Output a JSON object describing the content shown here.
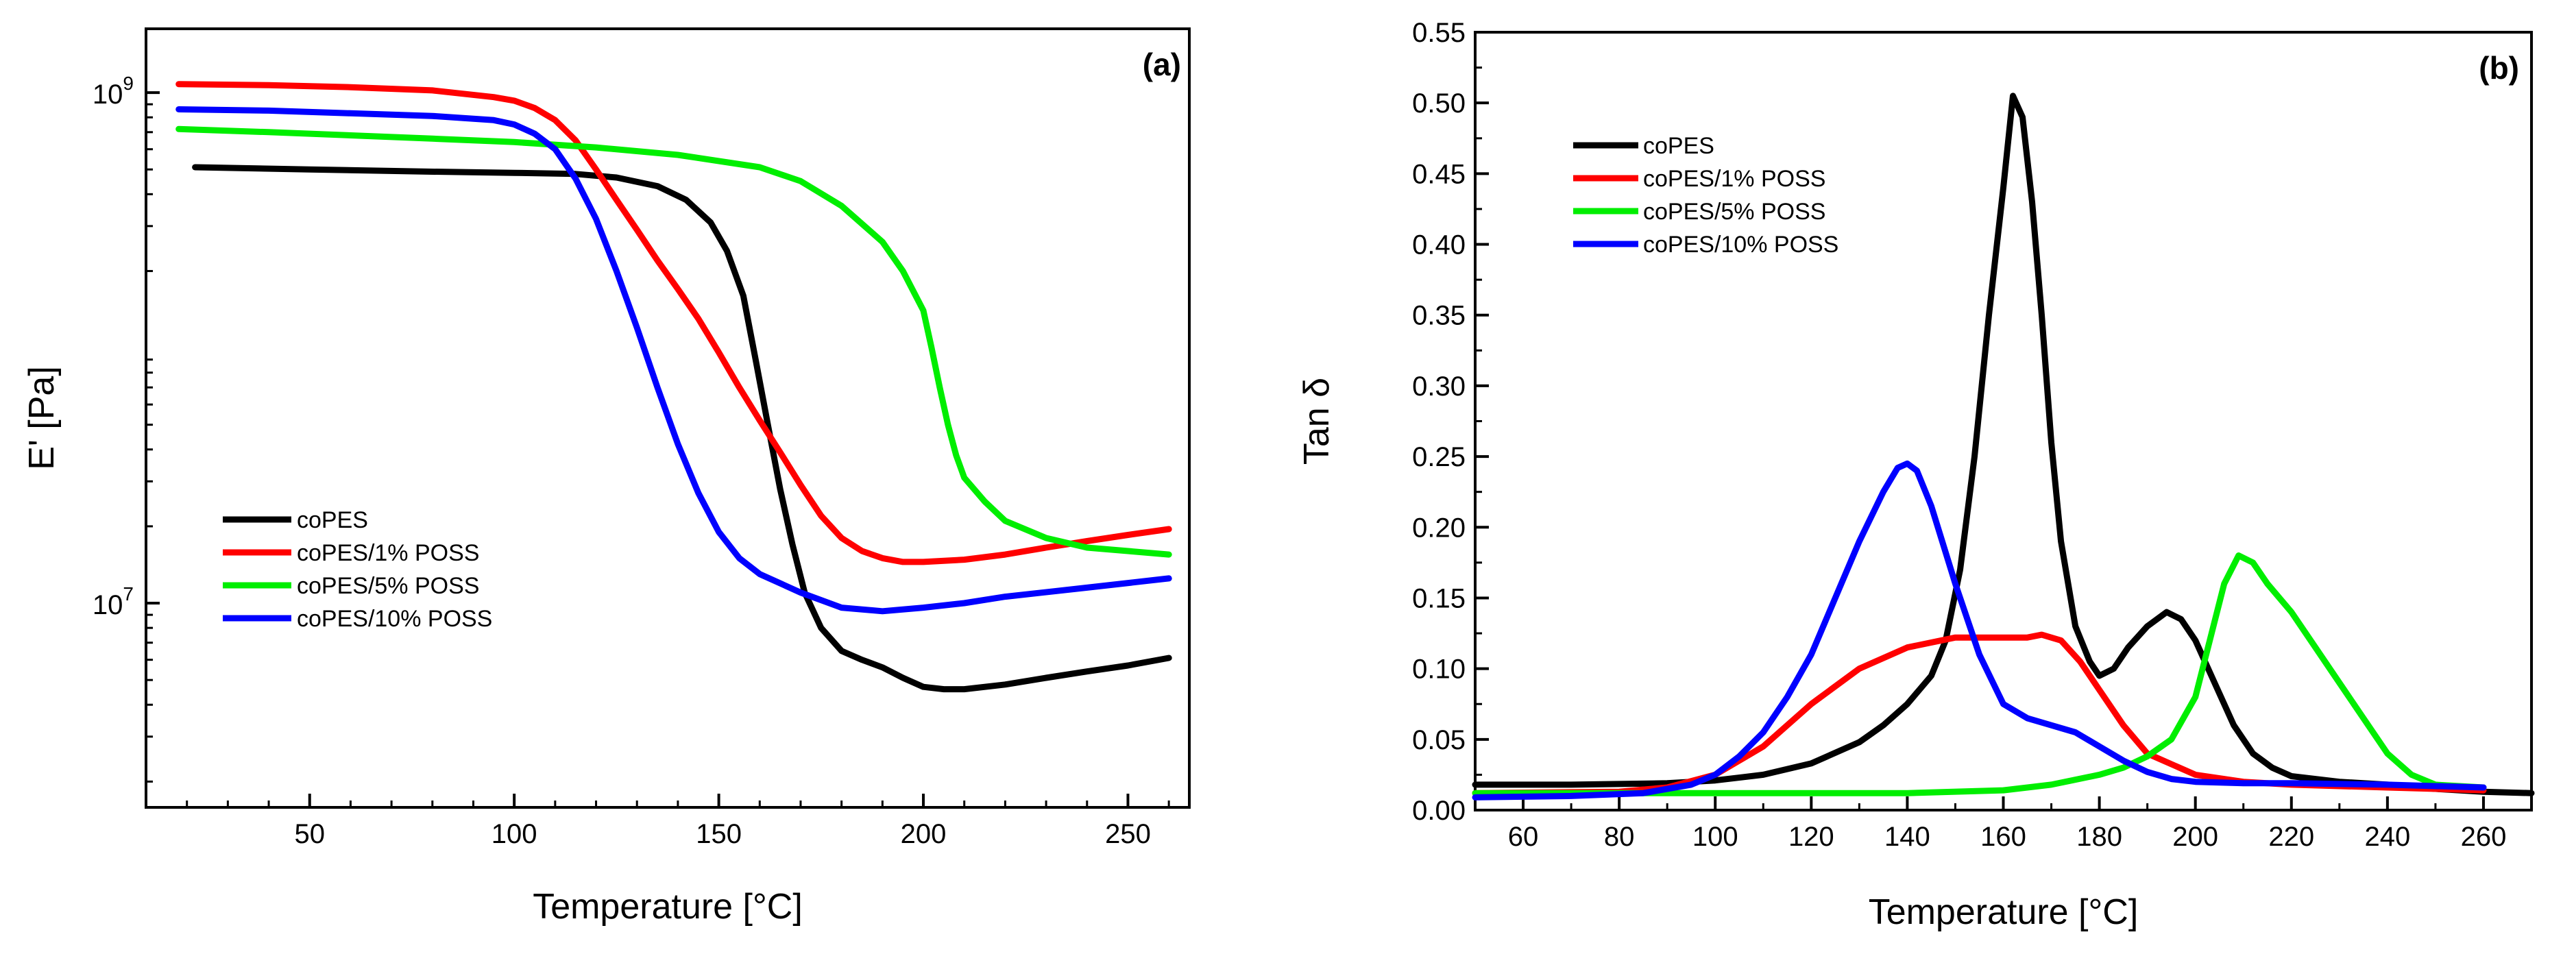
{
  "chart_data": [
    {
      "id": "a",
      "type": "line",
      "panel_label": "(a)",
      "xlabel": "Temperature [°C]",
      "ylabel": "E' [Pa]",
      "yscale": "log",
      "xlim": [
        10,
        265
      ],
      "ylim_log10": [
        6.2,
        9.25
      ],
      "x_ticks": [
        50,
        100,
        150,
        200,
        250
      ],
      "x_tick_labels": [
        "50",
        "100",
        "150",
        "200",
        "250"
      ],
      "y_ticks": [
        {
          "exp": 9,
          "base": "10",
          "power": "9"
        },
        {
          "exp": 7,
          "base": "10",
          "power": "7"
        }
      ],
      "legend_position": "lower-left",
      "series": [
        {
          "name": "coPES",
          "color": "#000000",
          "x": [
            22,
            50,
            80,
            100,
            115,
            125,
            135,
            142,
            148,
            152,
            156,
            159,
            162,
            165,
            168,
            171,
            175,
            180,
            185,
            190,
            195,
            200,
            205,
            210,
            220,
            230,
            240,
            250,
            260
          ],
          "y": [
            510000000.0,
            500000000.0,
            490000000.0,
            485000000.0,
            480000000.0,
            465000000.0,
            430000000.0,
            380000000.0,
            310000000.0,
            240000000.0,
            160000000.0,
            90000000.0,
            50000000.0,
            28000000.0,
            17000000.0,
            11000000.0,
            8000000.0,
            6500000.0,
            6000000.0,
            5600000.0,
            5100000.0,
            4700000.0,
            4600000.0,
            4600000.0,
            4800000.0,
            5100000.0,
            5400000.0,
            5700000.0,
            6100000.0
          ]
        },
        {
          "name": "coPES/1% POSS",
          "color": "#ff0000",
          "x": [
            18,
            40,
            60,
            80,
            95,
            100,
            105,
            110,
            115,
            120,
            125,
            130,
            135,
            140,
            145,
            150,
            155,
            160,
            165,
            170,
            175,
            180,
            185,
            190,
            195,
            200,
            210,
            220,
            230,
            240,
            250,
            260
          ],
          "y": [
            1080000000.0,
            1070000000.0,
            1050000000.0,
            1020000000.0,
            960000000.0,
            930000000.0,
            870000000.0,
            780000000.0,
            650000000.0,
            500000000.0,
            380000000.0,
            290000000.0,
            220000000.0,
            170000000.0,
            130000000.0,
            96000000.0,
            70000000.0,
            52000000.0,
            39000000.0,
            29000000.0,
            22000000.0,
            18000000.0,
            16000000.0,
            15000000.0,
            14500000.0,
            14500000.0,
            14800000.0,
            15500000.0,
            16500000.0,
            17500000.0,
            18500000.0,
            19500000.0
          ]
        },
        {
          "name": "coPES/5% POSS",
          "color": "#00ee00",
          "x": [
            18,
            40,
            60,
            80,
            100,
            120,
            140,
            160,
            170,
            180,
            190,
            195,
            200,
            202,
            204,
            206,
            208,
            210,
            215,
            220,
            230,
            240,
            250,
            260
          ],
          "y": [
            720000000.0,
            700000000.0,
            680000000.0,
            660000000.0,
            640000000.0,
            610000000.0,
            570000000.0,
            510000000.0,
            450000000.0,
            360000000.0,
            260000000.0,
            200000000.0,
            140000000.0,
            100000000.0,
            70000000.0,
            50000000.0,
            38000000.0,
            31000000.0,
            25000000.0,
            21000000.0,
            18000000.0,
            16500000.0,
            16000000.0,
            15500000.0
          ]
        },
        {
          "name": "coPES/10% POSS",
          "color": "#0000ff",
          "x": [
            18,
            40,
            60,
            80,
            95,
            100,
            105,
            110,
            115,
            120,
            125,
            130,
            135,
            140,
            145,
            150,
            155,
            160,
            170,
            180,
            190,
            200,
            210,
            220,
            240,
            260
          ],
          "y": [
            860000000.0,
            850000000.0,
            830000000.0,
            810000000.0,
            780000000.0,
            750000000.0,
            690000000.0,
            600000000.0,
            460000000.0,
            320000000.0,
            200000000.0,
            120000000.0,
            70000000.0,
            42000000.0,
            27000000.0,
            19000000.0,
            15000000.0,
            13000000.0,
            11000000.0,
            9600000.0,
            9300000.0,
            9600000.0,
            10000000.0,
            10600000.0,
            11500000.0,
            12500000.0
          ]
        }
      ]
    },
    {
      "id": "b",
      "type": "line",
      "panel_label": "(b)",
      "xlabel": "Temperature [°C]",
      "ylabel": "Tan δ",
      "xlim": [
        50,
        270
      ],
      "ylim": [
        0,
        0.55
      ],
      "x_ticks": [
        60,
        80,
        100,
        120,
        140,
        160,
        180,
        200,
        220,
        240,
        260
      ],
      "x_tick_labels": [
        "60",
        "80",
        "100",
        "120",
        "140",
        "160",
        "180",
        "200",
        "220",
        "240",
        "260"
      ],
      "y_ticks": [
        0,
        0.05,
        0.1,
        0.15,
        0.2,
        0.25,
        0.3,
        0.35,
        0.4,
        0.45,
        0.5,
        0.55
      ],
      "y_tick_labels": [
        "0.00",
        "0.05",
        "0.10",
        "0.15",
        "0.20",
        "0.25",
        "0.30",
        "0.35",
        "0.40",
        "0.45",
        "0.50",
        "0.55"
      ],
      "legend_position": "top-left",
      "series": [
        {
          "name": "coPES",
          "color": "#000000",
          "x": [
            50,
            70,
            90,
            100,
            110,
            120,
            130,
            135,
            140,
            145,
            148,
            151,
            154,
            157,
            160,
            162,
            164,
            166,
            168,
            170,
            172,
            175,
            178,
            180,
            183,
            186,
            190,
            194,
            197,
            200,
            204,
            208,
            212,
            216,
            220,
            230,
            240,
            250,
            260,
            270
          ],
          "y": [
            0.018,
            0.018,
            0.019,
            0.021,
            0.025,
            0.033,
            0.048,
            0.06,
            0.075,
            0.095,
            0.12,
            0.17,
            0.25,
            0.35,
            0.44,
            0.505,
            0.49,
            0.43,
            0.35,
            0.26,
            0.19,
            0.13,
            0.105,
            0.095,
            0.1,
            0.115,
            0.13,
            0.14,
            0.135,
            0.12,
            0.09,
            0.06,
            0.04,
            0.03,
            0.024,
            0.02,
            0.018,
            0.015,
            0.013,
            0.012
          ]
        },
        {
          "name": "coPES/1% POSS",
          "color": "#ff0000",
          "x": [
            50,
            80,
            90,
            100,
            110,
            120,
            130,
            140,
            150,
            160,
            165,
            168,
            172,
            176,
            180,
            185,
            190,
            200,
            210,
            220,
            240,
            250,
            260
          ],
          "y": [
            0.012,
            0.013,
            0.016,
            0.025,
            0.045,
            0.075,
            0.1,
            0.115,
            0.122,
            0.122,
            0.122,
            0.124,
            0.12,
            0.105,
            0.085,
            0.06,
            0.04,
            0.025,
            0.02,
            0.018,
            0.016,
            0.015,
            0.014
          ]
        },
        {
          "name": "coPES/5% POSS",
          "color": "#00ee00",
          "x": [
            50,
            80,
            100,
            120,
            140,
            160,
            170,
            180,
            185,
            190,
            195,
            200,
            203,
            206,
            209,
            212,
            215,
            220,
            225,
            230,
            235,
            240,
            245,
            250,
            260
          ],
          "y": [
            0.012,
            0.012,
            0.012,
            0.012,
            0.012,
            0.014,
            0.018,
            0.025,
            0.03,
            0.038,
            0.05,
            0.08,
            0.12,
            0.16,
            0.18,
            0.175,
            0.16,
            0.14,
            0.115,
            0.09,
            0.065,
            0.04,
            0.025,
            0.018,
            0.016
          ]
        },
        {
          "name": "coPES/10% POSS",
          "color": "#0000ff",
          "x": [
            50,
            70,
            85,
            95,
            100,
            105,
            110,
            115,
            120,
            125,
            130,
            135,
            138,
            140,
            142,
            145,
            150,
            155,
            160,
            165,
            170,
            175,
            180,
            185,
            190,
            195,
            200,
            210,
            220,
            240,
            260
          ],
          "y": [
            0.009,
            0.01,
            0.012,
            0.018,
            0.025,
            0.038,
            0.055,
            0.08,
            0.11,
            0.15,
            0.19,
            0.225,
            0.242,
            0.245,
            0.24,
            0.215,
            0.16,
            0.11,
            0.075,
            0.065,
            0.06,
            0.055,
            0.045,
            0.035,
            0.027,
            0.022,
            0.02,
            0.019,
            0.019,
            0.018,
            0.016
          ]
        }
      ]
    }
  ]
}
